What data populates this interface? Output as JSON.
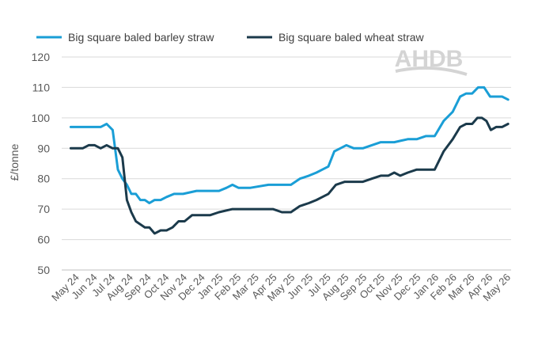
{
  "chart_data": {
    "type": "line",
    "ylabel": "£/tonne",
    "xlabel": "",
    "ylim": [
      50,
      120
    ],
    "yticks": [
      50,
      60,
      70,
      80,
      90,
      100,
      110,
      120
    ],
    "grid": "horizontal",
    "legend_position": "top",
    "watermark": "AHDB",
    "x_tick_labels": [
      "May 24",
      "Jun 24",
      "Jul 24",
      "Aug 24",
      "Sep 24",
      "Oct 24",
      "Nov 24",
      "Dec 24",
      "Jan 25",
      "Feb 25",
      "Mar 25",
      "Apr 25",
      "May 25",
      "Jun 25",
      "Jul 25",
      "Aug 25",
      "Sep 25",
      "Oct 25",
      "Nov 25",
      "Dec 25",
      "Jan 26",
      "Feb 26",
      "Mar 26",
      "Apr 26",
      "May 26"
    ],
    "series": [
      {
        "name": "Big square baled barley straw",
        "color": "#1a9ed6",
        "points": [
          [
            "May 24",
            97
          ],
          [
            "Jun 24",
            97
          ],
          [
            "Jul 24",
            97
          ],
          [
            "Jul 24",
            98
          ],
          [
            "Jul 24",
            96
          ],
          [
            "Aug 24",
            83
          ],
          [
            "Aug 24",
            80
          ],
          [
            "Aug 24",
            78
          ],
          [
            "Aug 24",
            75
          ],
          [
            "Sep 24",
            75
          ],
          [
            "Sep 24",
            73
          ],
          [
            "Sep 24",
            73
          ],
          [
            "Sep 24",
            72
          ],
          [
            "Oct 24",
            73
          ],
          [
            "Oct 24",
            73
          ],
          [
            "Oct 24",
            74
          ],
          [
            "Nov 24",
            75
          ],
          [
            "Nov 24",
            75
          ],
          [
            "Dec 24",
            76
          ],
          [
            "Jan 25",
            76
          ],
          [
            "Jan 25",
            76
          ],
          [
            "Feb 25",
            77
          ],
          [
            "Feb 25",
            78
          ],
          [
            "Feb 25",
            77
          ],
          [
            "Mar 25",
            77
          ],
          [
            "Apr 25",
            78
          ],
          [
            "May 25",
            78
          ],
          [
            "May 25",
            78
          ],
          [
            "Jun 25",
            80
          ],
          [
            "Jun 25",
            81
          ],
          [
            "Jul 25",
            82
          ],
          [
            "Jul 25",
            83
          ],
          [
            "Jul 25",
            84
          ],
          [
            "Aug 25",
            89
          ],
          [
            "Aug 25",
            90
          ],
          [
            "Aug 25",
            91
          ],
          [
            "Sep 25",
            90
          ],
          [
            "Sep 25",
            90
          ],
          [
            "Oct 25",
            91
          ],
          [
            "Oct 25",
            92
          ],
          [
            "Nov 25",
            92
          ],
          [
            "Dec 25",
            93
          ],
          [
            "Dec 25",
            93
          ],
          [
            "Jan 26",
            94
          ],
          [
            "Jan 26",
            94
          ],
          [
            "Feb 26",
            99
          ],
          [
            "Feb 26",
            102
          ],
          [
            "Mar 26",
            107
          ],
          [
            "Mar 26",
            108
          ],
          [
            "Mar 26",
            108
          ],
          [
            "Apr 26",
            110
          ],
          [
            "Apr 26",
            110
          ],
          [
            "Apr 26",
            107
          ],
          [
            "May 26",
            107
          ],
          [
            "May 26",
            107
          ],
          [
            "May 26",
            106
          ]
        ]
      },
      {
        "name": "Big square baled wheat straw",
        "color": "#1b3a4b",
        "points": [
          [
            "May 24",
            90
          ],
          [
            "Jun 24",
            90
          ],
          [
            "Jun 24",
            91
          ],
          [
            "Jun 24",
            91
          ],
          [
            "Jul 24",
            90
          ],
          [
            "Jul 24",
            91
          ],
          [
            "Jul 24",
            90
          ],
          [
            "Aug 24",
            90
          ],
          [
            "Aug 24",
            87
          ],
          [
            "Aug 24",
            73
          ],
          [
            "Aug 24",
            69
          ],
          [
            "Sep 24",
            66
          ],
          [
            "Sep 24",
            65
          ],
          [
            "Sep 24",
            64
          ],
          [
            "Sep 24",
            64
          ],
          [
            "Oct 24",
            62
          ],
          [
            "Oct 24",
            63
          ],
          [
            "Oct 24",
            63
          ],
          [
            "Nov 24",
            64
          ],
          [
            "Nov 24",
            66
          ],
          [
            "Nov 24",
            66
          ],
          [
            "Dec 24",
            68
          ],
          [
            "Dec 24",
            68
          ],
          [
            "Jan 25",
            68
          ],
          [
            "Jan 25",
            69
          ],
          [
            "Feb 25",
            70
          ],
          [
            "Mar 25",
            70
          ],
          [
            "Apr 25",
            70
          ],
          [
            "Apr 25",
            70
          ],
          [
            "May 25",
            69
          ],
          [
            "May 25",
            69
          ],
          [
            "Jun 25",
            71
          ],
          [
            "Jun 25",
            72
          ],
          [
            "Jul 25",
            73
          ],
          [
            "Jul 25",
            74
          ],
          [
            "Jul 25",
            75
          ],
          [
            "Aug 25",
            78
          ],
          [
            "Aug 25",
            79
          ],
          [
            "Sep 25",
            79
          ],
          [
            "Sep 25",
            79
          ],
          [
            "Oct 25",
            80
          ],
          [
            "Oct 25",
            81
          ],
          [
            "Nov 25",
            81
          ],
          [
            "Nov 25",
            82
          ],
          [
            "Nov 25",
            81
          ],
          [
            "Dec 25",
            82
          ],
          [
            "Dec 25",
            83
          ],
          [
            "Jan 26",
            83
          ],
          [
            "Jan 26",
            83
          ],
          [
            "Feb 26",
            89
          ],
          [
            "Feb 26",
            93
          ],
          [
            "Mar 26",
            97
          ],
          [
            "Mar 26",
            98
          ],
          [
            "Mar 26",
            98
          ],
          [
            "Apr 26",
            100
          ],
          [
            "Apr 26",
            100
          ],
          [
            "Apr 26",
            99
          ],
          [
            "Apr 26",
            96
          ],
          [
            "May 26",
            97
          ],
          [
            "May 26",
            97
          ],
          [
            "May 26",
            98
          ]
        ]
      }
    ]
  }
}
